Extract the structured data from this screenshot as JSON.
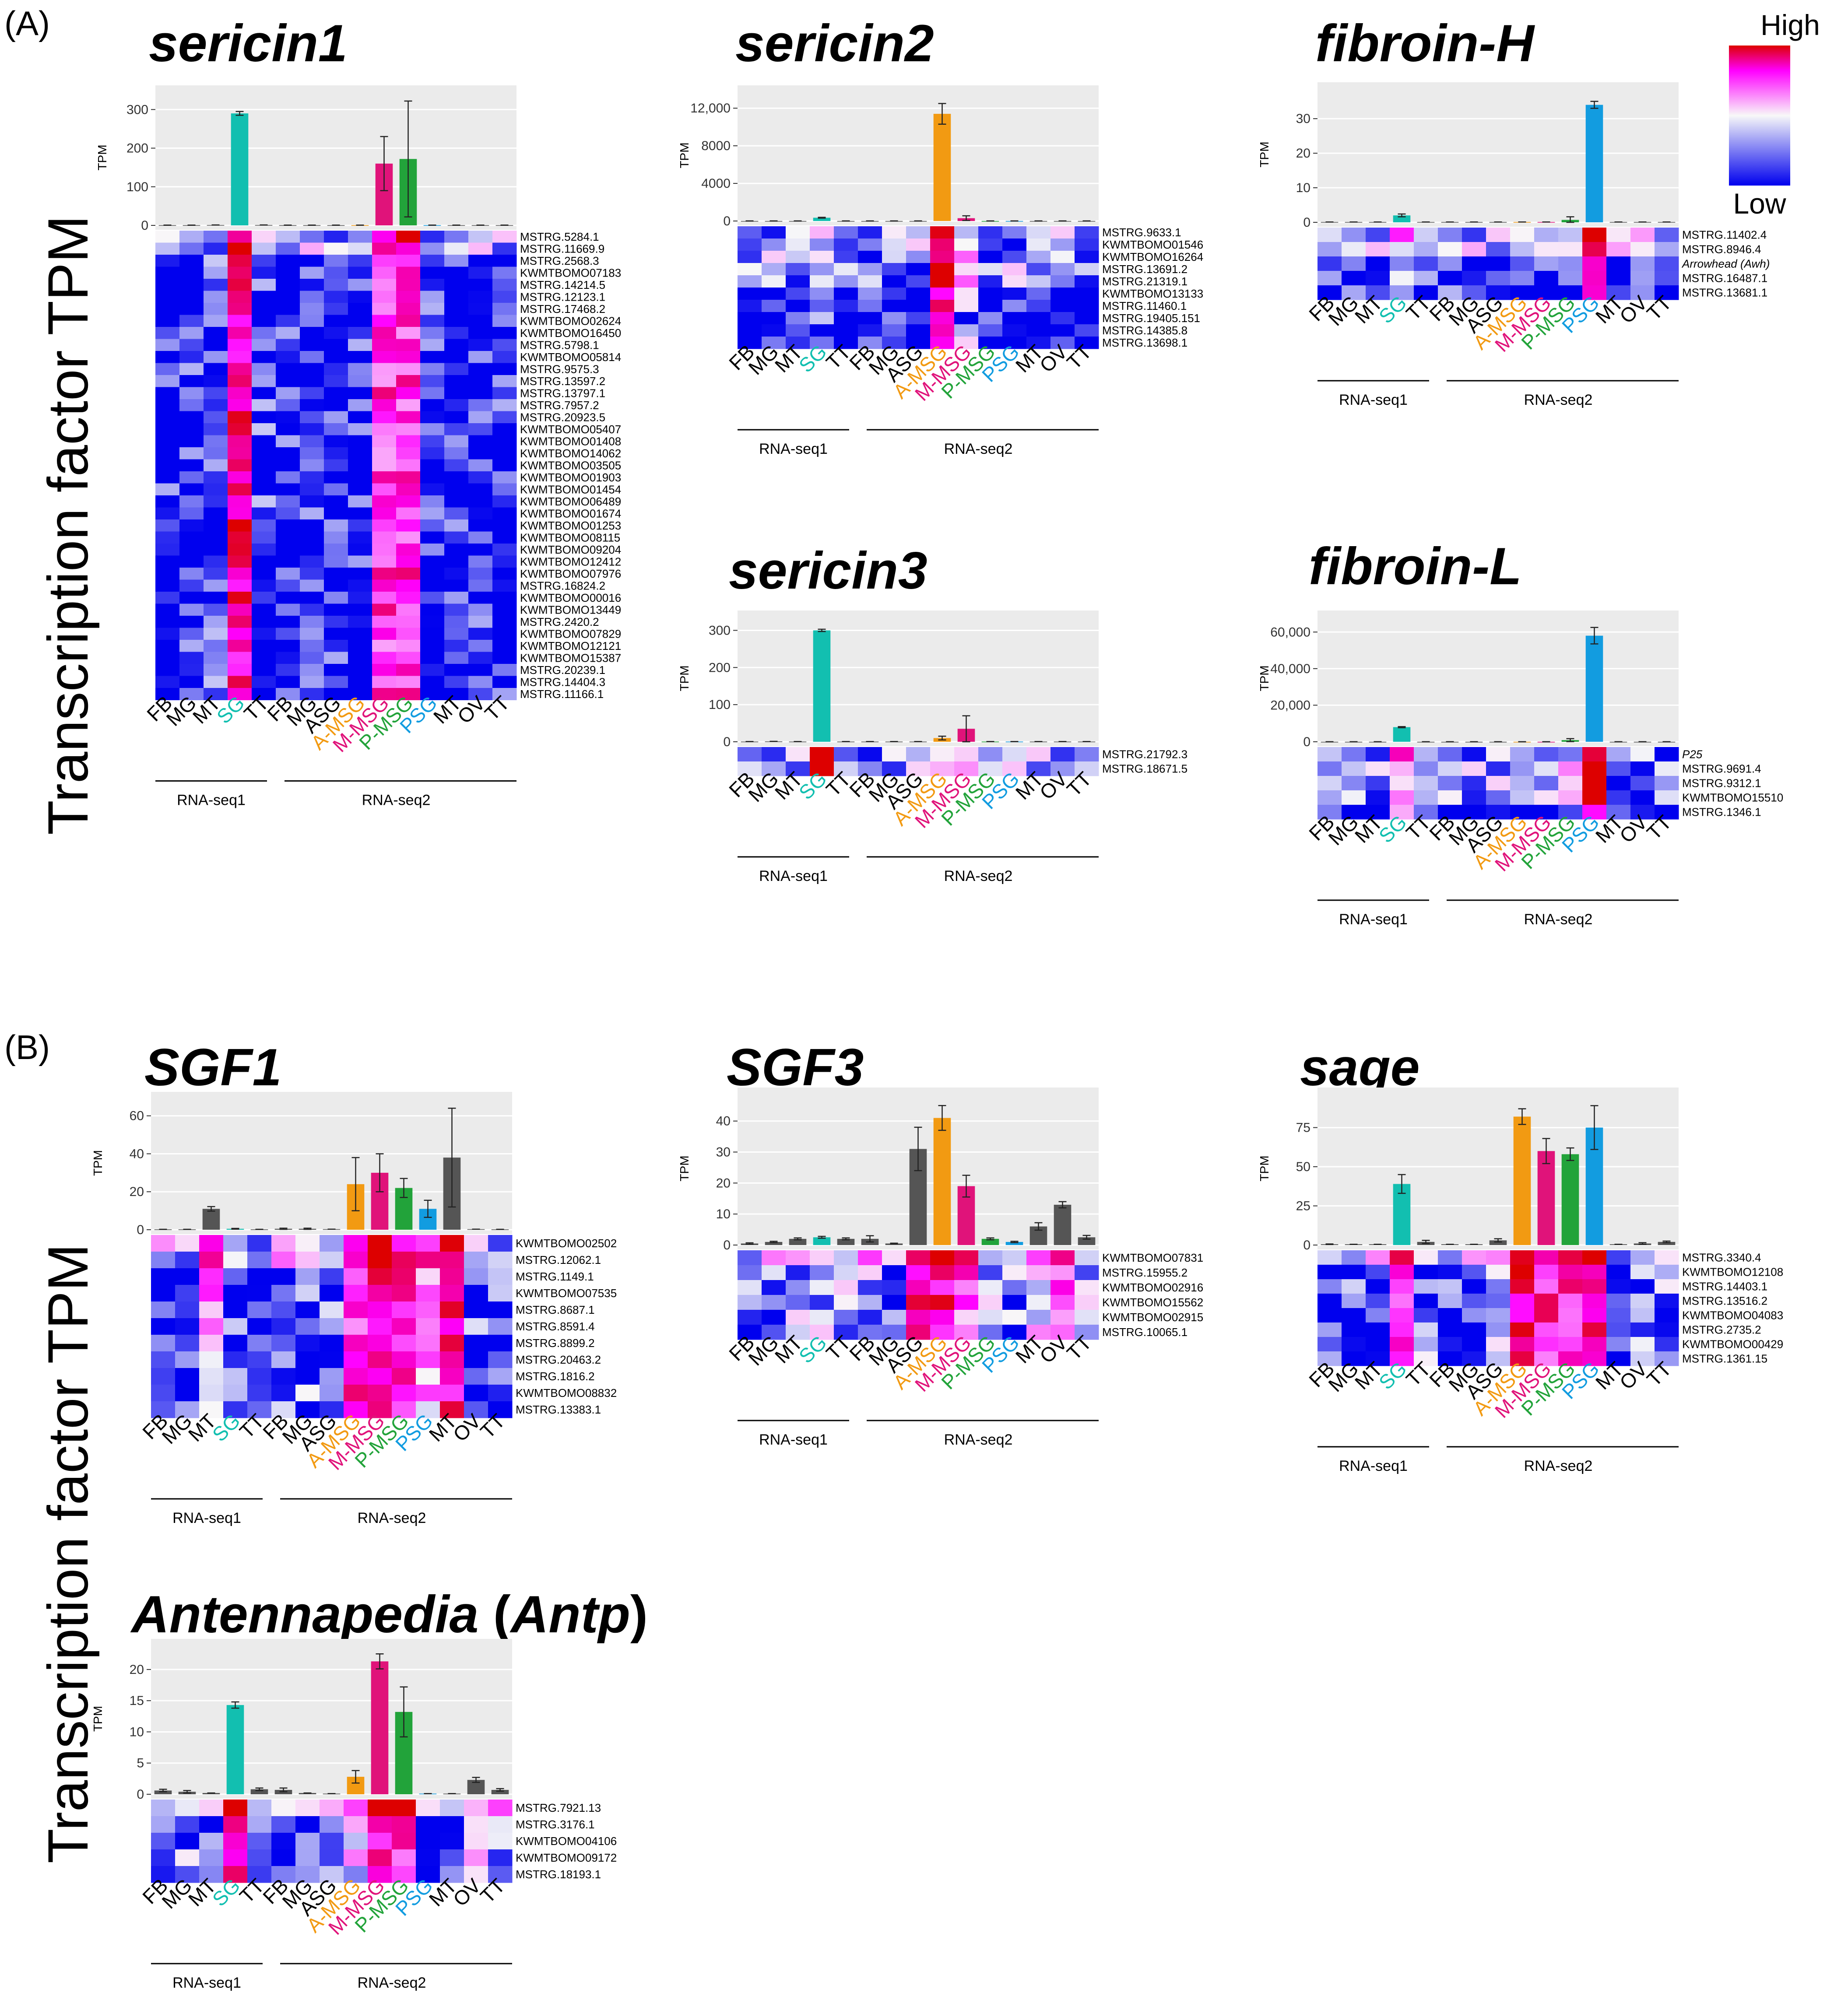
{
  "figure": {
    "section_a_label": "(A)",
    "section_b_label": "(B)",
    "y_axis_label": "Transcription factor TPM",
    "tpm_label": "TPM",
    "legend": {
      "high": "High",
      "low": "Low"
    },
    "group_labels": {
      "rnaseq1": "RNA-seq1",
      "rnaseq2": "RNA-seq2"
    },
    "tissues": [
      "FB",
      "MG",
      "MT",
      "SG",
      "TT",
      "FB",
      "MG",
      "ASG",
      "A-MSG",
      "M-MSG",
      "P-MSG",
      "PSG",
      "MT",
      "OV",
      "TT"
    ],
    "tissue_colors": [
      "#000000",
      "#000000",
      "#000000",
      "#12bfb0",
      "#000000",
      "#000000",
      "#000000",
      "#000000",
      "#f29a12",
      "#e0137a",
      "#22a33a",
      "#129ce0",
      "#000000",
      "#000000",
      "#000000"
    ]
  },
  "colors": {
    "panel_bg": "#ebebeb",
    "bar_gray": "#555555",
    "heat_low": "#0000ee",
    "heat_mid": "#f8f8f8",
    "heat_high": "#ff00ff",
    "heat_top": "#dd0000"
  },
  "chart_data": [
    {
      "id": "sericin1",
      "type": "bar",
      "title": "sericin1",
      "ylabel": "TPM",
      "ylim": [
        0,
        340
      ],
      "ticks": [
        {
          "v": 0,
          "t": "0"
        },
        {
          "v": 100,
          "t": "100"
        },
        {
          "v": 200,
          "t": "200"
        },
        {
          "v": 300,
          "t": "300"
        }
      ],
      "categories": [
        "FB",
        "MG",
        "MT",
        "SG",
        "TT",
        "FB",
        "MG",
        "ASG",
        "A-MSG",
        "M-MSG",
        "P-MSG",
        "PSG",
        "MT",
        "OV",
        "TT"
      ],
      "values": [
        0.5,
        0.5,
        1,
        290,
        1,
        0.5,
        0.5,
        0.5,
        0.5,
        160,
        172,
        0.5,
        0.5,
        0.5,
        0.5
      ],
      "errors": [
        0,
        0,
        0,
        5,
        0,
        0,
        0,
        0,
        0,
        70,
        150,
        0,
        0,
        0,
        0
      ],
      "genes": [
        "MSTRG.5284.1",
        "MSTRG.11669.9",
        "MSTRG.2568.3",
        "KWMTBOMO07183",
        "MSTRG.14214.5",
        "MSTRG.12123.1",
        "MSTRG.17468.2",
        "KWMTBOMO02624",
        "KWMTBOMO16450",
        "MSTRG.5798.1",
        "KWMTBOMO05814",
        "MSTRG.9575.3",
        "MSTRG.13597.2",
        "MSTRG.13797.1",
        "MSTRG.7957.2",
        "MSTRG.20923.5",
        "KWMTBOMO05407",
        "KWMTBOMO01408",
        "KWMTBOMO14062",
        "KWMTBOMO03505",
        "KWMTBOMO01903",
        "KWMTBOMO01454",
        "KWMTBOMO06489",
        "KWMTBOMO01674",
        "KWMTBOMO01253",
        "KWMTBOMO08115",
        "KWMTBOMO09204",
        "KWMTBOMO12412",
        "KWMTBOMO07976",
        "MSTRG.16824.2",
        "KWMTBOMO00016",
        "KWMTBOMO13449",
        "MSTRG.2420.2",
        "KWMTBOMO07829",
        "KWMTBOMO12121",
        "KWMTBOMO15387",
        "MSTRG.20239.1",
        "MSTRG.14404.3",
        "MSTRG.11166.1"
      ]
    },
    {
      "id": "sericin2",
      "type": "bar",
      "title": "sericin2",
      "ylabel": "TPM",
      "ylim": [
        0,
        13500
      ],
      "ticks": [
        {
          "v": 0,
          "t": "0"
        },
        {
          "v": 4000,
          "t": "4000"
        },
        {
          "v": 8000,
          "t": "8000"
        },
        {
          "v": 12000,
          "t": "12,000"
        }
      ],
      "categories": [
        "FB",
        "MG",
        "MT",
        "SG",
        "TT",
        "FB",
        "MG",
        "ASG",
        "A-MSG",
        "M-MSG",
        "P-MSG",
        "PSG",
        "MT",
        "OV",
        "TT"
      ],
      "values": [
        5,
        5,
        5,
        350,
        5,
        5,
        5,
        5,
        11400,
        300,
        5,
        5,
        5,
        5,
        5
      ],
      "errors": [
        0,
        0,
        0,
        40,
        0,
        0,
        0,
        0,
        1100,
        250,
        0,
        0,
        0,
        0,
        0
      ],
      "genes": [
        "MSTRG.9633.1",
        "KWMTBOMO01546",
        "KWMTBOMO16264",
        "MSTRG.13691.2",
        "MSTRG.21319.1",
        "KWMTBOMO13133",
        "MSTRG.11460.1",
        "MSTRG.19405.151",
        "MSTRG.14385.8",
        "MSTRG.13698.1"
      ]
    },
    {
      "id": "fibroinH",
      "type": "bar",
      "title": "fibroin-H",
      "ylabel": "TPM",
      "ylim": [
        0,
        38
      ],
      "ticks": [
        {
          "v": 0,
          "t": "0"
        },
        {
          "v": 10,
          "t": "10"
        },
        {
          "v": 20,
          "t": "20"
        },
        {
          "v": 30,
          "t": "30"
        }
      ],
      "categories": [
        "FB",
        "MG",
        "MT",
        "SG",
        "TT",
        "FB",
        "MG",
        "ASG",
        "A-MSG",
        "M-MSG",
        "P-MSG",
        "PSG",
        "MT",
        "OV",
        "TT"
      ],
      "values": [
        0.1,
        0.1,
        0.1,
        2,
        0.1,
        0.1,
        0.1,
        0.1,
        0.1,
        0.1,
        0.7,
        34,
        0.1,
        0.1,
        0.1
      ],
      "errors": [
        0,
        0,
        0,
        0.4,
        0,
        0,
        0,
        0,
        0,
        0,
        0.9,
        1,
        0,
        0,
        0
      ],
      "genes": [
        "MSTRG.11402.4",
        "MSTRG.8946.4",
        "Arrowhead (Awh)",
        "MSTRG.16487.1",
        "MSTRG.13681.1"
      ]
    },
    {
      "id": "sericin3",
      "type": "bar",
      "title": "sericin3",
      "ylabel": "TPM",
      "ylim": [
        0,
        330
      ],
      "ticks": [
        {
          "v": 0,
          "t": "0"
        },
        {
          "v": 100,
          "t": "100"
        },
        {
          "v": 200,
          "t": "200"
        },
        {
          "v": 300,
          "t": "300"
        }
      ],
      "categories": [
        "FB",
        "MG",
        "MT",
        "SG",
        "TT",
        "FB",
        "MG",
        "ASG",
        "A-MSG",
        "M-MSG",
        "P-MSG",
        "PSG",
        "MT",
        "OV",
        "TT"
      ],
      "values": [
        0.5,
        1,
        0.5,
        300,
        0.5,
        0.5,
        0.5,
        0.5,
        10,
        35,
        0.5,
        0.5,
        0.5,
        0.5,
        0.5
      ],
      "errors": [
        0,
        0,
        0,
        3,
        0,
        0,
        0,
        0,
        5,
        35,
        0,
        0,
        0,
        0,
        0
      ],
      "genes": [
        "MSTRG.21792.3",
        "MSTRG.18671.5"
      ]
    },
    {
      "id": "fibroinL",
      "type": "bar",
      "title": "fibroin-L",
      "ylabel": "TPM",
      "ylim": [
        0,
        67000
      ],
      "ticks": [
        {
          "v": 0,
          "t": "0"
        },
        {
          "v": 20000,
          "t": "20,000"
        },
        {
          "v": 40000,
          "t": "40,000"
        },
        {
          "v": 60000,
          "t": "60,000"
        }
      ],
      "categories": [
        "FB",
        "MG",
        "MT",
        "SG",
        "TT",
        "FB",
        "MG",
        "ASG",
        "A-MSG",
        "M-MSG",
        "P-MSG",
        "PSG",
        "MT",
        "OV",
        "TT"
      ],
      "values": [
        10,
        10,
        10,
        8000,
        10,
        10,
        10,
        10,
        10,
        10,
        900,
        58000,
        10,
        10,
        10
      ],
      "errors": [
        0,
        0,
        0,
        300,
        0,
        0,
        0,
        0,
        0,
        0,
        800,
        4500,
        0,
        0,
        0
      ],
      "genes": [
        "P25",
        "MSTRG.9691.4",
        "MSTRG.9312.1",
        "KWMTBOMO15510",
        "MSTRG.1346.1"
      ]
    },
    {
      "id": "sgf1",
      "type": "bar",
      "title": "SGF1",
      "ylabel": "TPM",
      "ylim": [
        0,
        68
      ],
      "ticks": [
        {
          "v": 0,
          "t": "0"
        },
        {
          "v": 20,
          "t": "20"
        },
        {
          "v": 40,
          "t": "40"
        },
        {
          "v": 60,
          "t": "60"
        }
      ],
      "categories": [
        "FB",
        "MG",
        "MT",
        "SG",
        "TT",
        "FB",
        "MG",
        "ASG",
        "A-MSG",
        "M-MSG",
        "P-MSG",
        "PSG",
        "MT",
        "OV",
        "TT"
      ],
      "values": [
        0.2,
        0.2,
        11,
        0.5,
        0.2,
        0.5,
        0.5,
        0.3,
        24,
        30,
        22,
        11,
        38,
        0.3,
        0.2
      ],
      "errors": [
        0,
        0,
        1.2,
        0.2,
        0,
        0.3,
        0.3,
        0,
        14,
        10,
        5,
        4.5,
        26,
        0,
        0
      ],
      "genes": [
        "KWMTBOMO02502",
        "MSTRG.12062.1",
        "MSTRG.1149.1",
        "KWMTBOMO07535",
        "MSTRG.8687.1",
        "MSTRG.8591.4",
        "MSTRG.8899.2",
        "MSTRG.20463.2",
        "MSTRG.1816.2",
        "KWMTBOMO08832",
        "MSTRG.13383.1"
      ]
    },
    {
      "id": "sgf3",
      "type": "bar",
      "title": "SGF3",
      "ylabel": "TPM",
      "ylim": [
        0,
        48
      ],
      "ticks": [
        {
          "v": 0,
          "t": "0"
        },
        {
          "v": 10,
          "t": "10"
        },
        {
          "v": 20,
          "t": "20"
        },
        {
          "v": 30,
          "t": "30"
        },
        {
          "v": 40,
          "t": "40"
        }
      ],
      "categories": [
        "FB",
        "MG",
        "MT",
        "SG",
        "TT",
        "FB",
        "MG",
        "ASG",
        "A-MSG",
        "M-MSG",
        "P-MSG",
        "PSG",
        "MT",
        "OV",
        "TT"
      ],
      "values": [
        0.5,
        1,
        2,
        2.5,
        2,
        2,
        0.5,
        31,
        41,
        19,
        2,
        1,
        6,
        13,
        2.5
      ],
      "errors": [
        0.2,
        0.2,
        0.3,
        0.3,
        0.3,
        1,
        0.1,
        7,
        4,
        3.5,
        0.3,
        0.2,
        1.2,
        1,
        0.6
      ],
      "genes": [
        "KWMTBOMO07831",
        "MSTRG.15955.2",
        "KWMTBOMO02916",
        "KWMTBOMO15562",
        "KWMTBOMO02915",
        "MSTRG.10065.1"
      ]
    },
    {
      "id": "sage",
      "type": "bar",
      "title": "sage",
      "ylabel": "TPM",
      "ylim": [
        0,
        95
      ],
      "ticks": [
        {
          "v": 0,
          "t": "0"
        },
        {
          "v": 25,
          "t": "25"
        },
        {
          "v": 50,
          "t": "50"
        },
        {
          "v": 75,
          "t": "75"
        }
      ],
      "categories": [
        "FB",
        "MG",
        "MT",
        "SG",
        "TT",
        "FB",
        "MG",
        "ASG",
        "A-MSG",
        "M-MSG",
        "P-MSG",
        "PSG",
        "MT",
        "OV",
        "TT"
      ],
      "values": [
        0.5,
        0.5,
        0.5,
        39,
        2,
        0.5,
        0.5,
        3,
        82,
        60,
        58,
        75,
        0.5,
        1,
        2
      ],
      "errors": [
        0.2,
        0,
        0,
        6,
        1,
        0,
        0,
        1,
        5,
        8,
        4,
        14,
        0,
        0.5,
        0.5
      ],
      "genes": [
        "MSTRG.3340.4",
        "KWMTBOMO12108",
        "MSTRG.14403.1",
        "MSTRG.13516.2",
        "KWMTBOMO04083",
        "MSTRG.2735.2",
        "KWMTBOMO00429",
        "MSTRG.1361.15"
      ]
    },
    {
      "id": "antp",
      "type": "bar",
      "title_main": "Antennapedia",
      "title_paren_open": "(",
      "title_italic": "Antp",
      "title_paren_close": ")",
      "ylabel": "TPM",
      "ylim": [
        0,
        23.5
      ],
      "ticks": [
        {
          "v": 0,
          "t": "0"
        },
        {
          "v": 5,
          "t": "5"
        },
        {
          "v": 10,
          "t": "10"
        },
        {
          "v": 15,
          "t": "15"
        },
        {
          "v": 20,
          "t": "20"
        }
      ],
      "categories": [
        "FB",
        "MG",
        "MT",
        "SG",
        "TT",
        "FB",
        "MG",
        "ASG",
        "A-MSG",
        "M-MSG",
        "P-MSG",
        "PSG",
        "MT",
        "OV",
        "TT"
      ],
      "values": [
        0.6,
        0.4,
        0.2,
        14.3,
        0.8,
        0.7,
        0.2,
        0.1,
        2.8,
        21.3,
        13.2,
        0.1,
        0.1,
        2.3,
        0.7
      ],
      "errors": [
        0.2,
        0.2,
        0,
        0.5,
        0.2,
        0.3,
        0,
        0,
        1,
        1.2,
        4,
        0,
        0,
        0.4,
        0.2
      ],
      "genes": [
        "MSTRG.7921.13",
        "MSTRG.3176.1",
        "KWMTBOMO04106",
        "KWMTBOMO09172",
        "MSTRG.18193.1"
      ]
    }
  ]
}
